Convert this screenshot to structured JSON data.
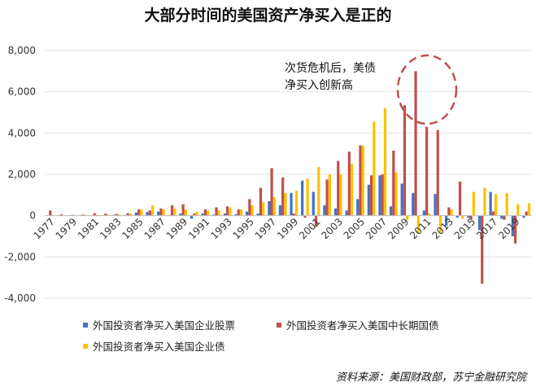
{
  "chart_data": {
    "type": "bar",
    "title": "大部分时间的美国资产净买入是正的",
    "categories": [
      "1977",
      "1978",
      "1979",
      "1980",
      "1981",
      "1982",
      "1983",
      "1984",
      "1985",
      "1986",
      "1987",
      "1988",
      "1989",
      "1990",
      "1991",
      "1992",
      "1993",
      "1994",
      "1995",
      "1996",
      "1997",
      "1998",
      "1999",
      "2000",
      "2001",
      "2002",
      "2003",
      "2004",
      "2005",
      "2006",
      "2007",
      "2008",
      "2009",
      "2010",
      "2011",
      "2012",
      "2013",
      "2014",
      "2015",
      "2016",
      "2017",
      "2018",
      "2019",
      "2020"
    ],
    "x_tick_labels": [
      "1977",
      "1979",
      "1981",
      "1983",
      "1985",
      "1987",
      "1989",
      "1991",
      "1993",
      "1995",
      "1997",
      "1999",
      "2001",
      "2003",
      "2005",
      "2007",
      "2009",
      "2011",
      "2013",
      "2015",
      "2017",
      "2019"
    ],
    "ylim": [
      -4000,
      8000
    ],
    "yticks": [
      -4000,
      -2000,
      0,
      2000,
      4000,
      6000,
      8000
    ],
    "ytick_labels": [
      "-4,000",
      "-2,000",
      "0",
      "2,000",
      "4,000",
      "6,000",
      "8,000"
    ],
    "series": [
      {
        "name": "外国投资者净买入美国企业股票",
        "color": "#4472c4",
        "values": [
          20,
          10,
          20,
          30,
          20,
          20,
          40,
          30,
          150,
          180,
          200,
          20,
          100,
          -150,
          100,
          50,
          100,
          60,
          200,
          100,
          700,
          500,
          1100,
          1700,
          1150,
          500,
          350,
          250,
          800,
          1500,
          1950,
          450,
          1550,
          1100,
          250,
          1050,
          -500,
          -100,
          -100,
          -700,
          1150,
          -150,
          -1000,
          -100
        ]
      },
      {
        "name": "外国投资者净买入美国中长期国债",
        "color": "#c0504d",
        "values": [
          250,
          60,
          40,
          50,
          120,
          100,
          80,
          120,
          300,
          250,
          350,
          500,
          550,
          100,
          300,
          400,
          450,
          300,
          800,
          1350,
          2300,
          1850,
          100,
          -100,
          -550,
          1750,
          2650,
          3100,
          3400,
          1950,
          2000,
          3150,
          5350,
          7000,
          4300,
          4150,
          400,
          1650,
          -200,
          -3300,
          200,
          -200,
          -1350,
          200
        ]
      },
      {
        "name": "外国投资者净买入美国企业债",
        "color": "#ffc000",
        "values": [
          30,
          20,
          20,
          30,
          40,
          40,
          50,
          100,
          300,
          500,
          300,
          350,
          300,
          200,
          250,
          250,
          400,
          300,
          500,
          650,
          900,
          1100,
          1200,
          1800,
          2350,
          2000,
          2000,
          2500,
          3400,
          4550,
          5200,
          2100,
          -200,
          -850,
          100,
          -850,
          300,
          -150,
          1150,
          1350,
          1050,
          1100,
          550,
          600
        ]
      }
    ]
  },
  "annotation": {
    "line1": "次货危机后，美债",
    "line2": "净买入创新高"
  },
  "source": "资料来源：美国财政部，苏宁金融研究院"
}
